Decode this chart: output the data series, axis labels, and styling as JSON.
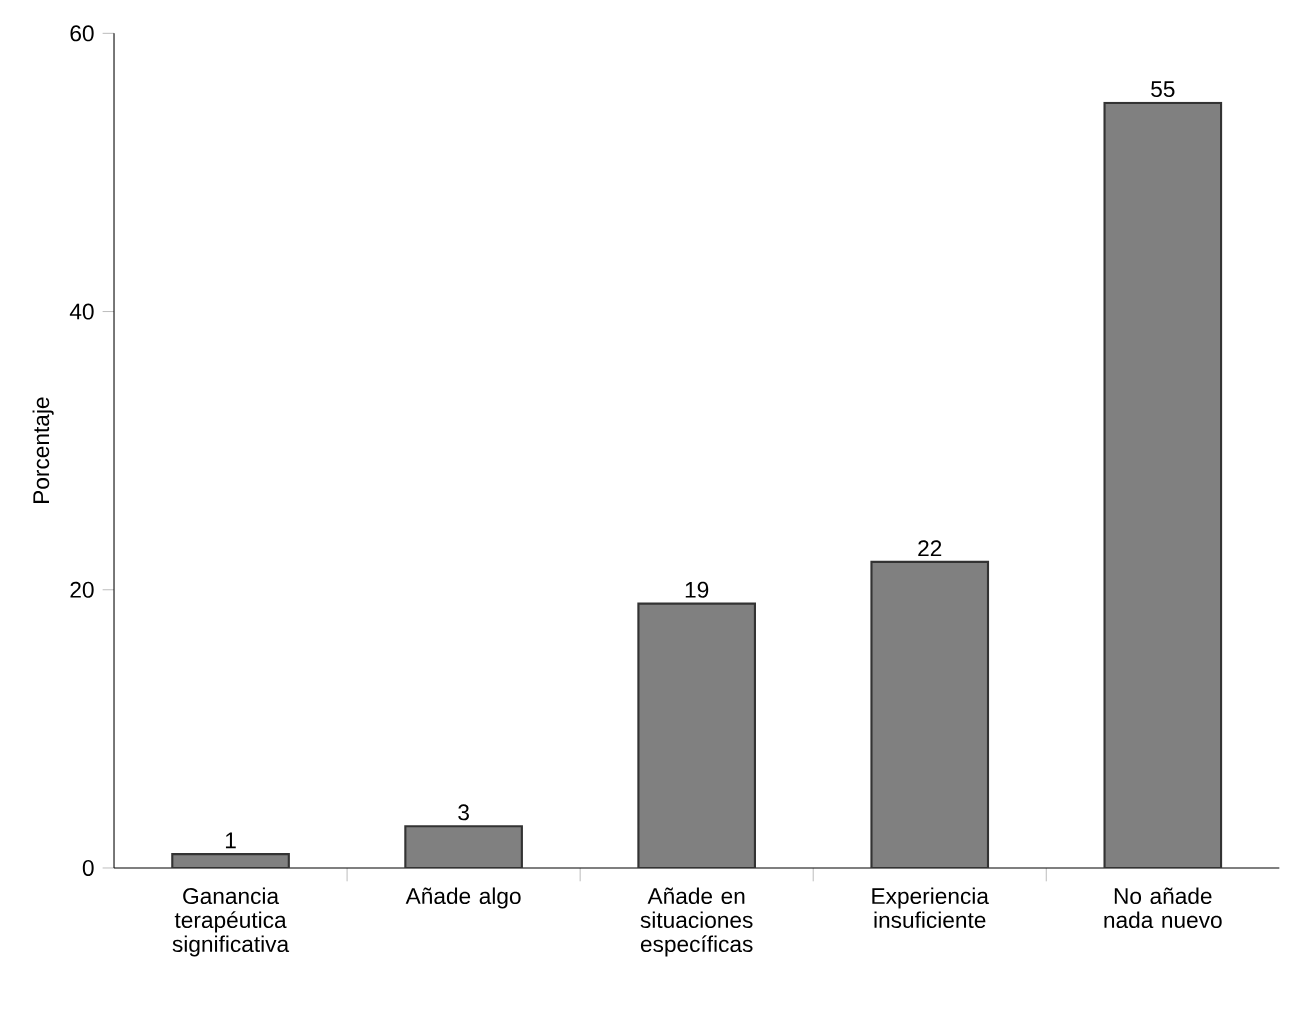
{
  "chart_data": {
    "type": "bar",
    "ylabel": "Porcentaje",
    "categories": [
      "Ganancia terapéutica significativa",
      "Añade algo",
      "Añade en situaciones específicas",
      "Experiencia insuficiente",
      "No añade nada nuevo"
    ],
    "values": [
      1,
      3,
      19,
      22,
      55
    ],
    "color": "#808080",
    "ylim": [
      0,
      60
    ],
    "yticks": [
      0,
      20,
      40,
      60
    ],
    "data_labels": true,
    "grid": false
  }
}
